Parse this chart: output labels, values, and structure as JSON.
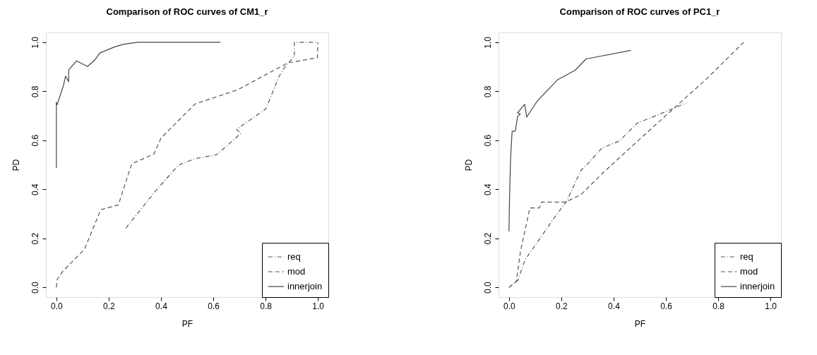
{
  "chart_data": [
    {
      "type": "line",
      "title": "Comparison of ROC curves of CM1_r",
      "xlabel": "PF",
      "ylabel": "PD",
      "xlim": [
        -0.04,
        1.04
      ],
      "ylim": [
        -0.04,
        1.04
      ],
      "xticks": [
        {
          "value": 0,
          "label": "0.0"
        },
        {
          "value": 0.2,
          "label": "0.2"
        },
        {
          "value": 0.4,
          "label": "0.4"
        },
        {
          "value": 0.6,
          "label": "0.6"
        },
        {
          "value": 0.8,
          "label": "0.8"
        },
        {
          "value": 1,
          "label": "1.0"
        }
      ],
      "yticks": [
        {
          "value": 0,
          "label": "0.0"
        },
        {
          "value": 0.2,
          "label": "0.2"
        },
        {
          "value": 0.4,
          "label": "0.4"
        },
        {
          "value": 0.6,
          "label": "0.6"
        },
        {
          "value": 0.8,
          "label": "0.8"
        },
        {
          "value": 1,
          "label": "1.0"
        }
      ],
      "grid": false,
      "legend": "bottom right",
      "series": [
        {
          "name": "req",
          "color": "#555555",
          "line_style": "dashdot",
          "x": [
            0.266,
            0.379,
            0.467,
            0.53,
            0.613,
            0.705,
            0.689,
            0.801,
            0.851,
            0.876,
            0.91,
            0.91,
            1.0
          ],
          "values": [
            0.242,
            0.393,
            0.499,
            0.525,
            0.541,
            0.628,
            0.645,
            0.728,
            0.86,
            0.903,
            0.942,
            1.0,
            1.0
          ]
        },
        {
          "name": "mod",
          "color": "#555555",
          "line_style": "dashed",
          "x": [
            0,
            0.003,
            0.024,
            0.108,
            0.17,
            0.237,
            0.288,
            0.373,
            0.4,
            0.53,
            0.693,
            0.885,
            0.998,
            1.0
          ],
          "values": [
            0,
            0.032,
            0.065,
            0.156,
            0.317,
            0.336,
            0.504,
            0.544,
            0.609,
            0.748,
            0.806,
            0.916,
            0.937,
            1.0
          ]
        },
        {
          "name": "innerjoin",
          "color": "#444444",
          "line_style": "solid",
          "x": [
            0,
            0,
            0.003,
            0.028,
            0.035,
            0.047,
            0.047,
            0.077,
            0.119,
            0.148,
            0.166,
            0.225,
            0.258,
            0.312,
            0.627
          ],
          "values": [
            0.487,
            0.755,
            0.745,
            0.827,
            0.862,
            0.839,
            0.887,
            0.924,
            0.901,
            0.929,
            0.956,
            0.982,
            0.992,
            1.0,
            1.0
          ]
        }
      ]
    },
    {
      "type": "line",
      "title": "Comparison of ROC curves of PC1_r",
      "xlabel": "PF",
      "ylabel": "PD",
      "xlim": [
        -0.04,
        1.04
      ],
      "ylim": [
        -0.04,
        1.04
      ],
      "xticks": [
        {
          "value": 0,
          "label": "0.0"
        },
        {
          "value": 0.2,
          "label": "0.2"
        },
        {
          "value": 0.4,
          "label": "0.4"
        },
        {
          "value": 0.6,
          "label": "0.6"
        },
        {
          "value": 0.8,
          "label": "0.8"
        },
        {
          "value": 1,
          "label": "1.0"
        }
      ],
      "yticks": [
        {
          "value": 0,
          "label": "0.0"
        },
        {
          "value": 0.2,
          "label": "0.2"
        },
        {
          "value": 0.4,
          "label": "0.4"
        },
        {
          "value": 0.6,
          "label": "0.6"
        },
        {
          "value": 0.8,
          "label": "0.8"
        },
        {
          "value": 1,
          "label": "1.0"
        }
      ],
      "grid": false,
      "legend": "bottom right",
      "series": [
        {
          "name": "req",
          "color": "#555555",
          "line_style": "dashdot",
          "x": [
            0,
            0.033,
            0.062,
            0.1,
            0.171,
            0.221,
            0.275,
            0.3,
            0.355,
            0.422,
            0.489,
            0.631,
            0.677
          ],
          "values": [
            0,
            0.027,
            0.113,
            0.171,
            0.281,
            0.352,
            0.477,
            0.503,
            0.568,
            0.597,
            0.669,
            0.731,
            0.753
          ]
        },
        {
          "name": "mod",
          "color": "#555555",
          "line_style": "dashed",
          "x": [
            0,
            0.028,
            0.044,
            0.08,
            0.116,
            0.125,
            0.217,
            0.275,
            0.359,
            0.497,
            0.631,
            0.756,
            0.897
          ],
          "values": [
            0,
            0.024,
            0.147,
            0.324,
            0.324,
            0.348,
            0.348,
            0.378,
            0.467,
            0.602,
            0.731,
            0.851,
            1.0
          ]
        },
        {
          "name": "innerjoin",
          "color": "#444444",
          "line_style": "solid",
          "x": [
            0,
            0.002,
            0.006,
            0.01,
            0.012,
            0.024,
            0.033,
            0.043,
            0.033,
            0.06,
            0.068,
            0.108,
            0.187,
            0.253,
            0.295,
            0.466
          ],
          "values": [
            0.228,
            0.362,
            0.525,
            0.602,
            0.637,
            0.637,
            0.697,
            0.707,
            0.712,
            0.747,
            0.695,
            0.76,
            0.848,
            0.886,
            0.932,
            0.967
          ]
        }
      ]
    }
  ]
}
